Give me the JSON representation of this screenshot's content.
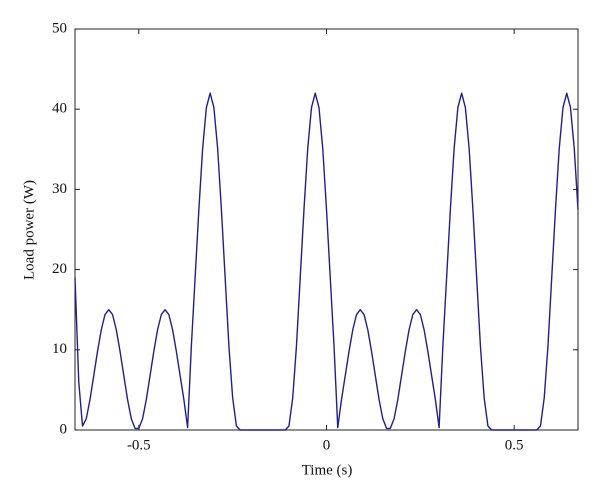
{
  "chart_data": {
    "type": "line",
    "xlabel": "Time (s)",
    "ylabel": "Load power (W)",
    "x": [
      -0.67,
      -0.66,
      -0.65,
      -0.64,
      -0.63,
      -0.62,
      -0.61,
      -0.6,
      -0.59,
      -0.58,
      -0.57,
      -0.56,
      -0.55,
      -0.54,
      -0.53,
      -0.52,
      -0.51,
      -0.5,
      -0.49,
      -0.48,
      -0.47,
      -0.46,
      -0.45,
      -0.44,
      -0.43,
      -0.42,
      -0.41,
      -0.4,
      -0.39,
      -0.38,
      -0.37,
      -0.36,
      -0.35,
      -0.34,
      -0.33,
      -0.32,
      -0.31,
      -0.3,
      -0.29,
      -0.28,
      -0.27,
      -0.26,
      -0.25,
      -0.24,
      -0.23,
      -0.22,
      -0.21,
      -0.2,
      -0.19,
      -0.18,
      -0.17,
      -0.16,
      -0.15,
      -0.14,
      -0.13,
      -0.12,
      -0.11,
      -0.1,
      -0.09,
      -0.08,
      -0.07,
      -0.06,
      -0.05,
      -0.04,
      -0.03,
      -0.02,
      -0.01,
      0,
      0.01,
      0.02,
      0.03,
      0.04,
      0.05,
      0.06,
      0.07,
      0.08,
      0.09,
      0.1,
      0.11,
      0.12,
      0.13,
      0.14,
      0.15,
      0.16,
      0.17,
      0.18,
      0.19,
      0.2,
      0.21,
      0.22,
      0.23,
      0.24,
      0.25,
      0.26,
      0.27,
      0.28,
      0.29,
      0.3,
      0.31,
      0.32,
      0.33,
      0.34,
      0.35,
      0.36,
      0.37,
      0.38,
      0.39,
      0.4,
      0.41,
      0.42,
      0.43,
      0.44,
      0.45,
      0.46,
      0.47,
      0.48,
      0.49,
      0.5,
      0.51,
      0.52,
      0.53,
      0.54,
      0.55,
      0.56,
      0.57,
      0.58,
      0.59,
      0.6,
      0.61,
      0.62,
      0.63,
      0.64,
      0.65,
      0.66,
      0.67
    ],
    "series": [
      {
        "color": "#1f1f8f",
        "values": [
          19,
          6,
          0.5,
          1.4,
          3.8,
          6.8,
          9.8,
          12.5,
          14.4,
          15,
          14.4,
          12.5,
          9.8,
          6.8,
          3.8,
          1.4,
          0.2,
          0.2,
          1.4,
          3.8,
          6.8,
          9.8,
          12.5,
          14.4,
          15,
          14.4,
          12.5,
          9.8,
          6.8,
          3.8,
          0.3,
          10.5,
          19,
          27.5,
          35.1,
          40.2,
          42,
          40.2,
          35.1,
          27.5,
          19,
          10.5,
          4,
          0.5,
          0,
          0,
          0,
          0,
          0,
          0,
          0,
          0,
          0,
          0,
          0,
          0,
          0,
          0.5,
          4,
          10.5,
          19,
          27.5,
          35.1,
          40.2,
          42,
          40.2,
          35.1,
          27.5,
          19,
          10.5,
          0.3,
          3.8,
          6.8,
          9.8,
          12.5,
          14.4,
          15,
          14.4,
          12.5,
          9.8,
          6.8,
          3.8,
          1.4,
          0.2,
          0.2,
          1.4,
          3.8,
          6.8,
          9.8,
          12.5,
          14.4,
          15,
          14.4,
          12.5,
          9.8,
          6.8,
          3.8,
          0.3,
          10.5,
          19,
          27.5,
          35.1,
          40.2,
          42,
          40.2,
          35.1,
          27.5,
          19,
          10.5,
          4,
          0.5,
          0,
          0,
          0,
          0,
          0,
          0,
          0,
          0,
          0,
          0,
          0,
          0,
          0,
          0.5,
          4,
          10.5,
          19,
          27.5,
          35.1,
          40.2,
          42,
          40.2,
          35.1,
          27.5
        ]
      }
    ],
    "xlim": [
      -0.67,
      0.67
    ],
    "xticks": [
      -0.5,
      0,
      0.5
    ],
    "ylim": [
      0,
      50
    ],
    "yticks": [
      0,
      10,
      20,
      30,
      40,
      50
    ]
  }
}
